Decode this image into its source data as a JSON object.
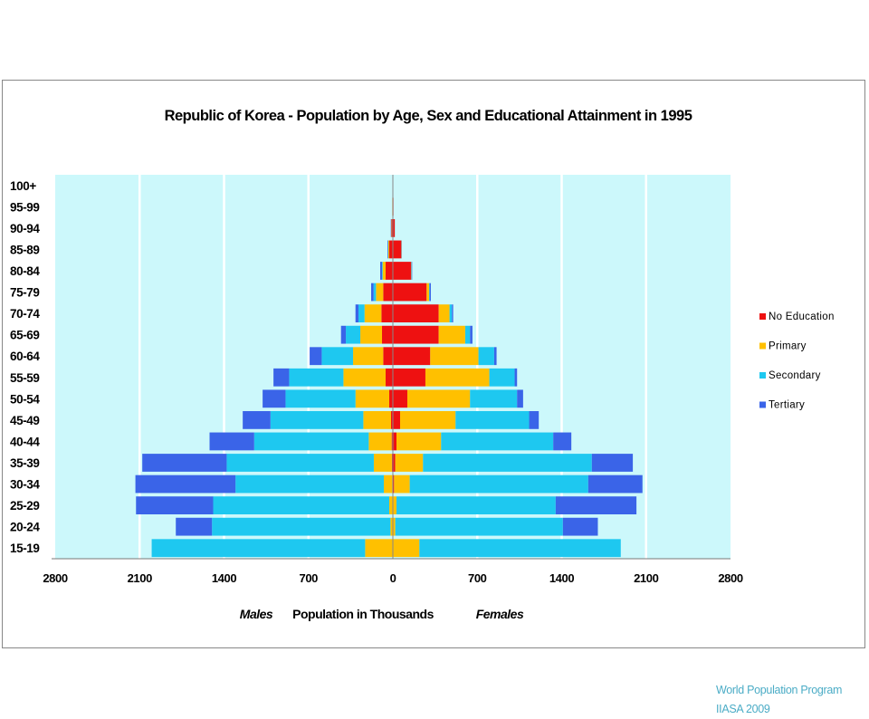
{
  "chart_data": {
    "type": "bar",
    "orientation": "horizontal-population-pyramid",
    "title": "Republic of Korea - Population by Age, Sex and Educational Attainment in 1995",
    "xlabel": "Population in Thousands",
    "side_labels": {
      "left": "Males",
      "right": "Females"
    },
    "x_ticks": [
      "2800",
      "2100",
      "1400",
      "700",
      "0",
      "700",
      "1400",
      "2100",
      "2800"
    ],
    "xlim": [
      -2800,
      2800
    ],
    "grid": true,
    "legend_position": "right",
    "categories": [
      "15-19",
      "20-24",
      "25-29",
      "30-34",
      "35-39",
      "40-44",
      "45-49",
      "50-54",
      "55-59",
      "60-64",
      "65-69",
      "70-74",
      "75-79",
      "80-84",
      "85-89",
      "90-94",
      "95-99",
      "100+"
    ],
    "series": [
      {
        "name": "No Education",
        "color": "#ee1111",
        "males": [
          0,
          0,
          0,
          5,
          8,
          10,
          15,
          30,
          60,
          80,
          90,
          95,
          80,
          60,
          30,
          12,
          4,
          1
        ],
        "females": [
          0,
          0,
          0,
          10,
          20,
          30,
          60,
          120,
          270,
          310,
          380,
          380,
          280,
          150,
          70,
          15,
          5,
          2
        ]
      },
      {
        "name": "Primary",
        "color": "#ffc000",
        "males": [
          230,
          20,
          30,
          70,
          150,
          190,
          230,
          280,
          350,
          250,
          180,
          140,
          60,
          25,
          8,
          2,
          1,
          0
        ],
        "females": [
          220,
          20,
          30,
          130,
          230,
          370,
          460,
          520,
          530,
          400,
          220,
          90,
          20,
          3,
          2,
          1,
          0,
          0
        ]
      },
      {
        "name": "Secondary",
        "color": "#1ec8f0",
        "males": [
          1770,
          1480,
          1460,
          1230,
          1220,
          950,
          770,
          580,
          450,
          260,
          120,
          50,
          20,
          5,
          2,
          1,
          0,
          0
        ],
        "females": [
          1670,
          1390,
          1320,
          1480,
          1400,
          930,
          610,
          390,
          210,
          130,
          40,
          20,
          5,
          2,
          1,
          0,
          0,
          0
        ]
      },
      {
        "name": "Tertiary",
        "color": "#3a64e8",
        "males": [
          0,
          300,
          640,
          830,
          700,
          370,
          230,
          190,
          130,
          100,
          40,
          25,
          20,
          15,
          5,
          2,
          0,
          0
        ],
        "females": [
          0,
          290,
          670,
          450,
          340,
          150,
          80,
          50,
          20,
          20,
          20,
          10,
          10,
          5,
          2,
          1,
          0,
          0
        ]
      }
    ]
  },
  "credit": {
    "line1": "World Population Program",
    "line2": "IIASA 2009"
  }
}
